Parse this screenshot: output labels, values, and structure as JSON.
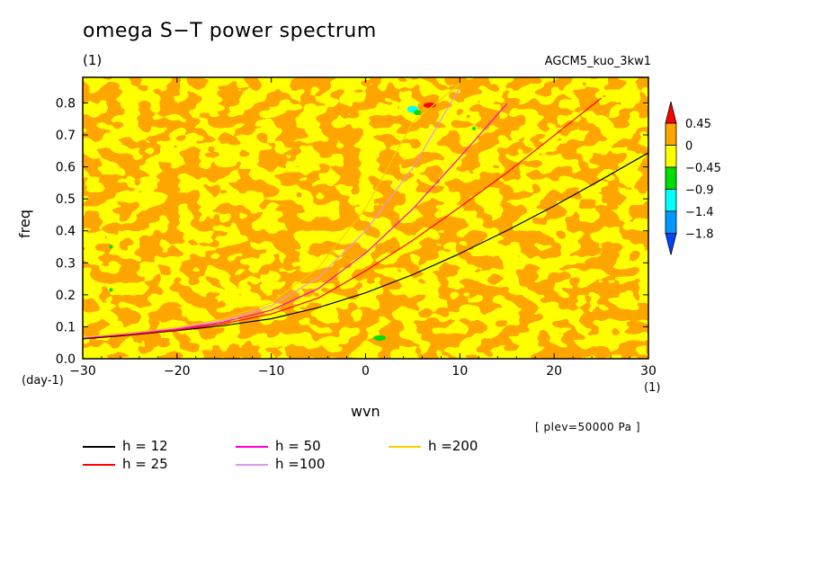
{
  "header": {
    "title": "omega S−T power spectrum",
    "unit_label": "(1)",
    "run_name": "AGCM5_kuo_3kw1",
    "plev": "[ plev=50000 Pa ]"
  },
  "colors": {
    "c_pos_high": "#ff0000",
    "c_pos": "#ffa500",
    "c_zero": "#ffff00",
    "c_neg1": "#00dd00",
    "c_neg2": "#00ffff",
    "c_neg3": "#0099ff",
    "c_neg4": "#0044ff"
  },
  "chart_data": {
    "type": "heatmap",
    "title": "omega S−T power spectrum",
    "xlabel": "wvn",
    "ylabel": "freq",
    "x_unit": "(1)",
    "y_unit": "(day-1)",
    "xlim": [
      -30,
      30
    ],
    "ylim": [
      0,
      0.88
    ],
    "x_ticks": [
      -30,
      -20,
      -10,
      0,
      10,
      20,
      30
    ],
    "x_tick_labels": [
      "−30",
      "−20",
      "−10",
      "0",
      "10",
      "20",
      "30"
    ],
    "y_ticks": [
      0.0,
      0.1,
      0.2,
      0.3,
      0.4,
      0.5,
      0.6,
      0.7,
      0.8
    ],
    "y_tick_labels": [
      "0.0",
      "0.1",
      "0.2",
      "0.3",
      "0.4",
      "0.5",
      "0.6",
      "0.7",
      "0.8"
    ],
    "colorbar_labels": [
      "0.45",
      "0",
      "−0.45",
      "−0.9",
      "−1.4",
      "−1.8"
    ],
    "series": [
      {
        "name": "h = 12",
        "color": "#000000",
        "x": [
          -30,
          -25,
          -20,
          -15,
          -10,
          -5,
          0,
          5,
          10,
          15,
          20,
          25,
          30
        ],
        "y": [
          0.062,
          0.074,
          0.088,
          0.104,
          0.125,
          0.16,
          0.206,
          0.263,
          0.329,
          0.401,
          0.478,
          0.56,
          0.644
        ]
      },
      {
        "name": "h = 25",
        "color": "#ff0000",
        "x": [
          -30,
          -25,
          -20,
          -15,
          -10,
          -5,
          0,
          5,
          10,
          15,
          20,
          25
        ],
        "y": [
          0.065,
          0.076,
          0.09,
          0.11,
          0.14,
          0.19,
          0.275,
          0.37,
          0.474,
          0.582,
          0.698,
          0.815
        ]
      },
      {
        "name": "h = 50",
        "color": "#ff00cc",
        "x": [
          -30,
          -25,
          -20,
          -15,
          -10,
          -5,
          0,
          5,
          10,
          15
        ],
        "y": [
          0.066,
          0.078,
          0.093,
          0.115,
          0.152,
          0.22,
          0.33,
          0.468,
          0.63,
          0.798
        ]
      },
      {
        "name": "h =100",
        "color": "#dd99ee",
        "x": [
          -30,
          -25,
          -20,
          -15,
          -10,
          -5,
          0,
          5,
          10
        ],
        "y": [
          0.067,
          0.08,
          0.096,
          0.12,
          0.165,
          0.254,
          0.4,
          0.596,
          0.848
        ]
      },
      {
        "name": "h =200",
        "color": "#ffcc00",
        "x": [
          -30,
          -25,
          -20,
          -15,
          -10,
          -5,
          0,
          5,
          10
        ],
        "y": [
          0.068,
          0.081,
          0.098,
          0.125,
          0.175,
          0.285,
          0.47,
          0.74,
          0.86
        ]
      }
    ]
  }
}
